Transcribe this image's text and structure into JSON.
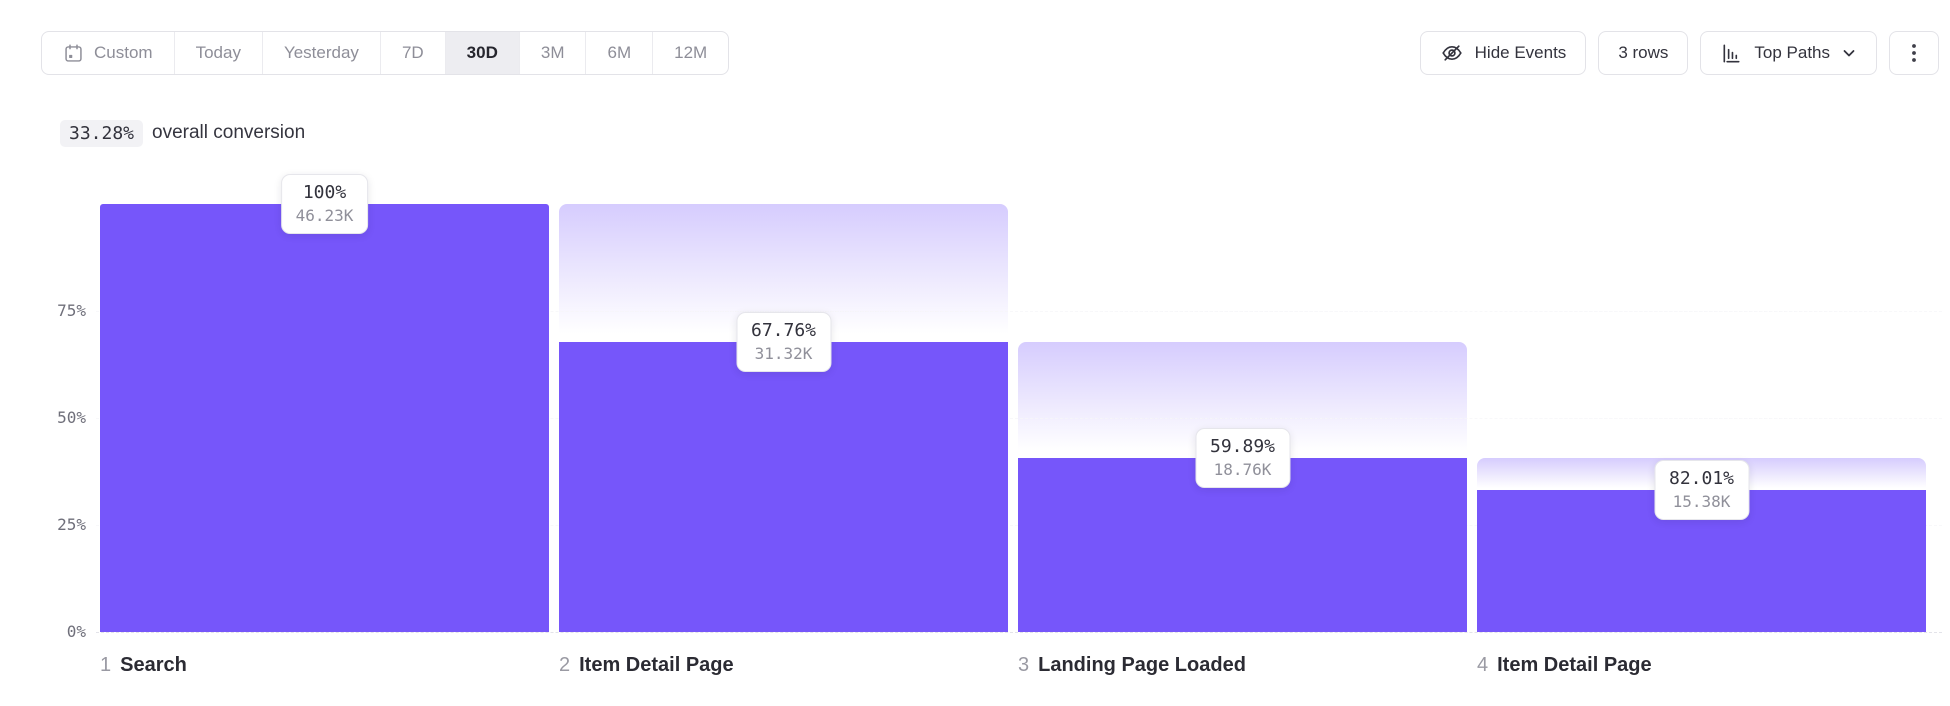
{
  "toolbar": {
    "date_ranges": [
      {
        "label": "Custom",
        "selected": false,
        "icon": "calendar"
      },
      {
        "label": "Today",
        "selected": false
      },
      {
        "label": "Yesterday",
        "selected": false
      },
      {
        "label": "7D",
        "selected": false
      },
      {
        "label": "30D",
        "selected": true
      },
      {
        "label": "3M",
        "selected": false
      },
      {
        "label": "6M",
        "selected": false
      },
      {
        "label": "12M",
        "selected": false
      }
    ],
    "hide_events_label": "Hide Events",
    "rows_label": "3 rows",
    "top_paths_label": "Top Paths"
  },
  "overall": {
    "value": "33.28%",
    "label": "overall conversion"
  },
  "chart_data": {
    "type": "bar",
    "subtype": "funnel",
    "title": "",
    "overall_conversion_pct": 33.28,
    "ylim": [
      0,
      100
    ],
    "grid": "dashed-horizontal",
    "legend": "none",
    "yticks": [
      {
        "label": "0%",
        "pct": 0
      },
      {
        "label": "25%",
        "pct": 25
      },
      {
        "label": "50%",
        "pct": 50
      },
      {
        "label": "75%",
        "pct": 75
      }
    ],
    "steps": [
      {
        "num": "1",
        "name": "Search",
        "conversion_label": "100%",
        "conversion_pct": 100,
        "count_label": "46.23K",
        "count_k": 46.23
      },
      {
        "num": "2",
        "name": "Item Detail Page",
        "conversion_label": "67.76%",
        "conversion_pct": 67.76,
        "count_label": "31.32K",
        "count_k": 31.32
      },
      {
        "num": "3",
        "name": "Landing Page Loaded",
        "conversion_label": "59.89%",
        "conversion_pct": 59.89,
        "count_label": "18.76K",
        "count_k": 18.76
      },
      {
        "num": "4",
        "name": "Item Detail Page",
        "conversion_label": "82.01%",
        "conversion_pct": 82.01,
        "count_label": "15.38K",
        "count_k": 15.38
      }
    ]
  },
  "colors": {
    "accent": "#7656FA",
    "ghost_top": "rgba(118,86,250,0.30)",
    "ghost_bottom": "rgba(118,86,250,0)",
    "gridline": "#E3E3E9",
    "tick_text": "#6F6F7A",
    "selected_segment_bg": "#EDEDF1"
  }
}
